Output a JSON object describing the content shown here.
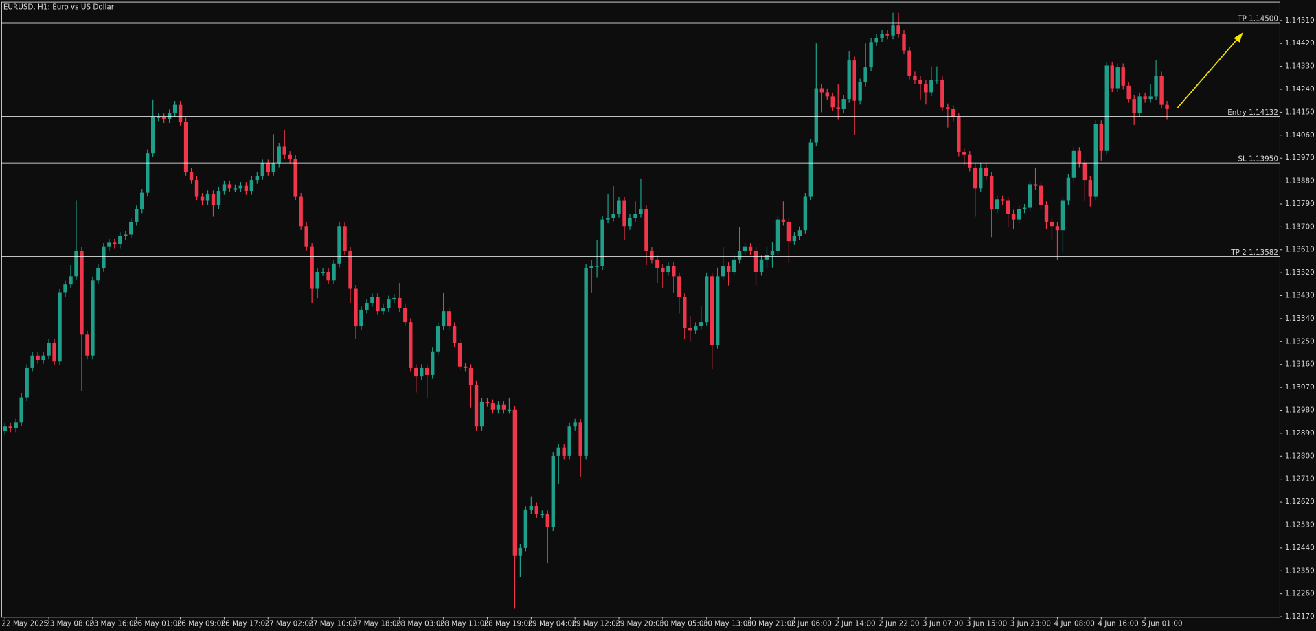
{
  "chart_data": {
    "type": "candlestick",
    "title": "EURUSD, H1:  Euro vs US Dollar",
    "up_color": "#1f9e8a",
    "down_color": "#f0364a",
    "level_color": "#ffffff",
    "open": [
      1.129,
      1.12916,
      1.12909,
      1.12932,
      1.13031,
      1.13146,
      1.13195,
      1.13178,
      1.13195,
      1.13244,
      1.13172,
      1.13441,
      1.13474,
      1.13506,
      1.13605,
      1.13277,
      1.13195,
      1.1349,
      1.13539,
      1.13621,
      1.13638,
      1.13631,
      1.13664,
      1.1367,
      1.1372,
      1.13769,
      1.13834,
      1.13989,
      1.1413,
      1.1413,
      1.14123,
      1.14146,
      1.14179,
      1.14113,
      1.13916,
      1.13884,
      1.13818,
      1.13802,
      1.13828,
      1.13785,
      1.13841,
      1.13867,
      1.13851,
      1.13851,
      1.13861,
      1.13841,
      1.13884,
      1.139,
      1.13949,
      1.13916,
      1.13949,
      1.14015,
      1.13982,
      1.13966,
      1.13818,
      1.13703,
      1.13621,
      1.13457,
      1.13523,
      1.13523,
      1.1349,
      1.13556,
      1.13703,
      1.13605,
      1.13457,
      1.1331,
      1.13375,
      1.13401,
      1.13424,
      1.13369,
      1.13382,
      1.13415,
      1.13421,
      1.13382,
      1.13326,
      1.13146,
      1.13113,
      1.13146,
      1.13119,
      1.13211,
      1.1331,
      1.13369,
      1.1331,
      1.13244,
      1.13152,
      1.13146,
      1.1308,
      1.12916,
      1.13014,
      1.13008,
      1.12982,
      1.13001,
      1.12982,
      1.12982,
      1.12408,
      1.1244,
      1.12588,
      1.12604,
      1.12572,
      1.12572,
      1.12522,
      1.12801,
      1.12834,
      1.12801,
      1.12916,
      1.12932,
      1.12801,
      1.13539,
      1.13546,
      1.13546,
      1.13729,
      1.13736,
      1.13752,
      1.13802,
      1.13703,
      1.13736,
      1.13752,
      1.13769,
      1.13605,
      1.13572,
      1.13539,
      1.13523,
      1.13546,
      1.13506,
      1.13424,
      1.13303,
      1.13293,
      1.1331,
      1.13326,
      1.13506,
      1.13237,
      1.13506,
      1.13546,
      1.13523,
      1.13572,
      1.13605,
      1.13621,
      1.13605,
      1.13523,
      1.13572,
      1.13588,
      1.13605,
      1.13729,
      1.1372,
      1.13644,
      1.13664,
      1.13687,
      1.13818,
      1.14031,
      1.14244,
      1.14228,
      1.14212,
      1.14169,
      1.14162,
      1.14202,
      1.14353,
      1.14195,
      1.14267,
      1.14326,
      1.14425,
      1.14441,
      1.14458,
      1.14451,
      1.1449,
      1.14458,
      1.14392,
      1.14294,
      1.14277,
      1.14261,
      1.14228,
      1.14277,
      1.14277,
      1.14169,
      1.14162,
      1.1413,
      1.13992,
      1.13982,
      1.13933,
      1.13851,
      1.13933,
      1.139,
      1.13769,
      1.13808,
      1.13802,
      1.13752,
      1.13729,
      1.13769,
      1.13775,
      1.13867,
      1.13861,
      1.13785,
      1.1372,
      1.13703,
      1.13687,
      1.13802,
      1.13893,
      1.13998,
      1.13949,
      1.13884,
      1.13818,
      1.14103,
      1.13998,
      1.14333,
      1.14244,
      1.14326,
      1.14254,
      1.14202,
      1.14146,
      1.14212,
      1.14202,
      1.14212,
      1.14294,
      1.14179
    ],
    "high": [
      1.12931,
      1.12931,
      1.12947,
      1.13046,
      1.13161,
      1.1321,
      1.1321,
      1.1321,
      1.13259,
      1.13259,
      1.13456,
      1.13489,
      1.1355,
      1.13802,
      1.1362,
      1.13292,
      1.13505,
      1.13554,
      1.13636,
      1.13653,
      1.13653,
      1.13679,
      1.13685,
      1.13735,
      1.13784,
      1.13849,
      1.14004,
      1.142,
      1.14145,
      1.14145,
      1.14161,
      1.14194,
      1.14194,
      1.14128,
      1.13931,
      1.13899,
      1.13833,
      1.13843,
      1.13843,
      1.13856,
      1.13882,
      1.13882,
      1.13866,
      1.13876,
      1.13876,
      1.13899,
      1.13915,
      1.13964,
      1.13964,
      1.14064,
      1.1403,
      1.1408,
      1.13997,
      1.13981,
      1.13833,
      1.13718,
      1.13636,
      1.13538,
      1.13538,
      1.13538,
      1.13571,
      1.1372,
      1.13718,
      1.1362,
      1.13472,
      1.1339,
      1.13416,
      1.13439,
      1.13439,
      1.13397,
      1.1343,
      1.13436,
      1.1348,
      1.13397,
      1.13341,
      1.13161,
      1.13161,
      1.13161,
      1.13226,
      1.13325,
      1.1344,
      1.13384,
      1.13325,
      1.13259,
      1.13167,
      1.13161,
      1.13095,
      1.13029,
      1.13029,
      1.13023,
      1.13016,
      1.13016,
      1.1303,
      1.12997,
      1.12455,
      1.12603,
      1.1264,
      1.12619,
      1.12587,
      1.12587,
      1.12816,
      1.12849,
      1.12849,
      1.12931,
      1.12947,
      1.12947,
      1.13554,
      1.1357,
      1.1365,
      1.13744,
      1.1383,
      1.1386,
      1.13817,
      1.13817,
      1.13751,
      1.138,
      1.1389,
      1.13784,
      1.1362,
      1.13587,
      1.13554,
      1.13561,
      1.13561,
      1.13521,
      1.13439,
      1.1335,
      1.13325,
      1.1339,
      1.13521,
      1.13521,
      1.1354,
      1.1362,
      1.13561,
      1.13587,
      1.137,
      1.13636,
      1.13636,
      1.1362,
      1.13587,
      1.1362,
      1.1364,
      1.13744,
      1.138,
      1.13735,
      1.13679,
      1.13702,
      1.13833,
      1.14046,
      1.1442,
      1.14259,
      1.14243,
      1.14227,
      1.1426,
      1.14217,
      1.1439,
      1.14368,
      1.14282,
      1.1442,
      1.1444,
      1.14456,
      1.14473,
      1.14473,
      1.1454,
      1.1454,
      1.14473,
      1.14407,
      1.14309,
      1.14292,
      1.14276,
      1.1433,
      1.1433,
      1.14292,
      1.14184,
      1.14177,
      1.14145,
      1.14007,
      1.13997,
      1.13948,
      1.13948,
      1.13948,
      1.13915,
      1.13823,
      1.13823,
      1.13817,
      1.13767,
      1.13784,
      1.1379,
      1.13882,
      1.1393,
      1.13876,
      1.138,
      1.13735,
      1.13718,
      1.13817,
      1.13908,
      1.14013,
      1.14013,
      1.13964,
      1.13899,
      1.14118,
      1.14118,
      1.14348,
      1.14348,
      1.14341,
      1.14341,
      1.14269,
      1.14217,
      1.14227,
      1.14227,
      1.1426,
      1.14353,
      1.14309,
      1.14194
    ],
    "low": [
      1.12885,
      1.12894,
      1.12894,
      1.12917,
      1.13016,
      1.13131,
      1.13163,
      1.13163,
      1.1318,
      1.13157,
      1.13157,
      1.13426,
      1.13459,
      1.13491,
      1.13054,
      1.1318,
      1.1318,
      1.13475,
      1.13524,
      1.13606,
      1.13616,
      1.13616,
      1.13649,
      1.13655,
      1.13705,
      1.13754,
      1.13819,
      1.13974,
      1.14115,
      1.14108,
      1.14108,
      1.14131,
      1.14098,
      1.13901,
      1.13869,
      1.13803,
      1.13787,
      1.13787,
      1.1374,
      1.1377,
      1.13826,
      1.13836,
      1.13836,
      1.13836,
      1.13826,
      1.13826,
      1.13869,
      1.13885,
      1.13901,
      1.13901,
      1.13934,
      1.13967,
      1.13951,
      1.13803,
      1.13688,
      1.13606,
      1.134,
      1.1342,
      1.13508,
      1.13475,
      1.13475,
      1.13541,
      1.1359,
      1.134,
      1.1326,
      1.13295,
      1.1336,
      1.13386,
      1.13354,
      1.13354,
      1.13367,
      1.134,
      1.13367,
      1.13311,
      1.13131,
      1.1305,
      1.13098,
      1.1303,
      1.13104,
      1.13196,
      1.13295,
      1.13295,
      1.13229,
      1.13137,
      1.13131,
      1.1299,
      1.12901,
      1.12901,
      1.12993,
      1.12967,
      1.12967,
      1.12967,
      1.12967,
      1.12201,
      1.12325,
      1.12425,
      1.12573,
      1.12557,
      1.12557,
      1.1238,
      1.12507,
      1.1269,
      1.12786,
      1.12786,
      1.12901,
      1.1272,
      1.12786,
      1.1344,
      1.135,
      1.13531,
      1.13714,
      1.13721,
      1.13737,
      1.1365,
      1.13688,
      1.13721,
      1.13737,
      1.1355,
      1.13557,
      1.1348,
      1.1346,
      1.13508,
      1.1344,
      1.1336,
      1.1326,
      1.1325,
      1.13278,
      1.13295,
      1.13311,
      1.1314,
      1.13222,
      1.13491,
      1.1347,
      1.13508,
      1.13557,
      1.1359,
      1.1359,
      1.1347,
      1.13508,
      1.1354,
      1.1354,
      1.1359,
      1.13705,
      1.1356,
      1.13629,
      1.13649,
      1.13672,
      1.13803,
      1.14016,
      1.1415,
      1.14197,
      1.14154,
      1.1412,
      1.14147,
      1.14187,
      1.1406,
      1.1418,
      1.14252,
      1.14311,
      1.1441,
      1.14426,
      1.14436,
      1.14436,
      1.14443,
      1.14377,
      1.14279,
      1.14262,
      1.142,
      1.1418,
      1.14213,
      1.14262,
      1.14154,
      1.1409,
      1.14115,
      1.13977,
      1.1394,
      1.13918,
      1.1374,
      1.13836,
      1.13885,
      1.1366,
      1.13754,
      1.13787,
      1.137,
      1.1369,
      1.13714,
      1.13754,
      1.1376,
      1.13846,
      1.1377,
      1.1369,
      1.1365,
      1.1357,
      1.136,
      1.13787,
      1.13878,
      1.13934,
      1.138,
      1.1378,
      1.13803,
      1.1396,
      1.13983,
      1.14229,
      1.14229,
      1.14239,
      1.14187,
      1.141,
      1.14131,
      1.14187,
      1.14187,
      1.14197,
      1.14164,
      1.1412
    ],
    "close": [
      1.12916,
      1.12909,
      1.12932,
      1.13031,
      1.13146,
      1.13195,
      1.13178,
      1.13195,
      1.13244,
      1.13172,
      1.13441,
      1.13474,
      1.13506,
      1.13605,
      1.13277,
      1.13195,
      1.1349,
      1.13539,
      1.13621,
      1.13638,
      1.13631,
      1.13664,
      1.1367,
      1.1372,
      1.13769,
      1.13834,
      1.13989,
      1.1413,
      1.1413,
      1.14123,
      1.14146,
      1.14179,
      1.14113,
      1.13916,
      1.13884,
      1.13818,
      1.13802,
      1.13828,
      1.13785,
      1.13841,
      1.13867,
      1.13851,
      1.13851,
      1.13861,
      1.13841,
      1.13884,
      1.139,
      1.13949,
      1.13916,
      1.13949,
      1.14015,
      1.13982,
      1.13966,
      1.13818,
      1.13703,
      1.13621,
      1.13457,
      1.13523,
      1.13523,
      1.1349,
      1.13556,
      1.13703,
      1.13605,
      1.13457,
      1.1331,
      1.13375,
      1.13401,
      1.13424,
      1.13369,
      1.13382,
      1.13415,
      1.13421,
      1.13382,
      1.13326,
      1.13146,
      1.13113,
      1.13146,
      1.13119,
      1.13211,
      1.1331,
      1.13369,
      1.1331,
      1.13244,
      1.13152,
      1.13146,
      1.1308,
      1.12916,
      1.13014,
      1.13008,
      1.12982,
      1.13001,
      1.12982,
      1.12982,
      1.12408,
      1.1244,
      1.12588,
      1.12604,
      1.12572,
      1.12572,
      1.12522,
      1.12801,
      1.12834,
      1.12801,
      1.12916,
      1.12932,
      1.12801,
      1.13539,
      1.13546,
      1.13546,
      1.13729,
      1.13736,
      1.13752,
      1.13802,
      1.13703,
      1.13736,
      1.13752,
      1.13769,
      1.13605,
      1.13572,
      1.13539,
      1.13523,
      1.13546,
      1.13506,
      1.13424,
      1.13303,
      1.13293,
      1.1331,
      1.13326,
      1.13506,
      1.13237,
      1.13506,
      1.13546,
      1.13523,
      1.13572,
      1.13605,
      1.13621,
      1.13605,
      1.13523,
      1.13572,
      1.13588,
      1.13605,
      1.13729,
      1.1372,
      1.13644,
      1.13664,
      1.13687,
      1.13818,
      1.14031,
      1.14244,
      1.14228,
      1.14212,
      1.14169,
      1.14162,
      1.14202,
      1.14353,
      1.14195,
      1.14267,
      1.14326,
      1.14425,
      1.14441,
      1.14458,
      1.14451,
      1.1449,
      1.14458,
      1.14392,
      1.14294,
      1.14277,
      1.14261,
      1.14228,
      1.14277,
      1.14277,
      1.14169,
      1.14162,
      1.1413,
      1.13992,
      1.13982,
      1.13933,
      1.13851,
      1.13933,
      1.139,
      1.13769,
      1.13808,
      1.13802,
      1.13752,
      1.13729,
      1.13769,
      1.13775,
      1.13867,
      1.13861,
      1.13785,
      1.1372,
      1.13703,
      1.13687,
      1.13802,
      1.13893,
      1.13998,
      1.13949,
      1.13884,
      1.13818,
      1.14103,
      1.13998,
      1.14333,
      1.14244,
      1.14326,
      1.14254,
      1.14202,
      1.14146,
      1.14212,
      1.14202,
      1.14212,
      1.14294,
      1.14179,
      1.14162
    ],
    "xlim": [
      -0.6,
      232.6
    ],
    "xticks": [
      {
        "value": 0,
        "label": "22 May 2025"
      },
      {
        "value": 8,
        "label": "23 May 08:00"
      },
      {
        "value": 16,
        "label": "23 May 16:00"
      },
      {
        "value": 24,
        "label": "26 May 01:00"
      },
      {
        "value": 32,
        "label": "26 May 09:00"
      },
      {
        "value": 40,
        "label": "26 May 17:00"
      },
      {
        "value": 48,
        "label": "27 May 02:00"
      },
      {
        "value": 56,
        "label": "27 May 10:00"
      },
      {
        "value": 64,
        "label": "27 May 18:00"
      },
      {
        "value": 72,
        "label": "28 May 03:00"
      },
      {
        "value": 80,
        "label": "28 May 11:00"
      },
      {
        "value": 88,
        "label": "28 May 19:00"
      },
      {
        "value": 96,
        "label": "29 May 04:00"
      },
      {
        "value": 104,
        "label": "29 May 12:00"
      },
      {
        "value": 112,
        "label": "29 May 20:00"
      },
      {
        "value": 120,
        "label": "30 May 05:00"
      },
      {
        "value": 128,
        "label": "30 May 13:00"
      },
      {
        "value": 136,
        "label": "30 May 21:00"
      },
      {
        "value": 144,
        "label": "2 Jun 06:00"
      },
      {
        "value": 152,
        "label": "2 Jun 14:00"
      },
      {
        "value": 160,
        "label": "2 Jun 22:00"
      },
      {
        "value": 168,
        "label": "3 Jun 07:00"
      },
      {
        "value": 176,
        "label": "3 Jun 15:00"
      },
      {
        "value": 184,
        "label": "3 Jun 23:00"
      },
      {
        "value": 192,
        "label": "4 Jun 08:00"
      },
      {
        "value": 200,
        "label": "4 Jun 16:00"
      },
      {
        "value": 208,
        "label": "5 Jun 01:00"
      }
    ],
    "ylim": [
      1.12168,
      1.14582
    ],
    "yticks": [
      {
        "value": 1.1451,
        "label": "1.14510"
      },
      {
        "value": 1.1442,
        "label": "1.14420"
      },
      {
        "value": 1.1433,
        "label": "1.14330"
      },
      {
        "value": 1.1424,
        "label": "1.14240"
      },
      {
        "value": 1.1415,
        "label": "1.14150"
      },
      {
        "value": 1.1406,
        "label": "1.14060"
      },
      {
        "value": 1.1397,
        "label": "1.13970"
      },
      {
        "value": 1.1388,
        "label": "1.13880"
      },
      {
        "value": 1.1379,
        "label": "1.13790"
      },
      {
        "value": 1.137,
        "label": "1.13700"
      },
      {
        "value": 1.1361,
        "label": "1.13610"
      },
      {
        "value": 1.1352,
        "label": "1.13520"
      },
      {
        "value": 1.1343,
        "label": "1.13430"
      },
      {
        "value": 1.1334,
        "label": "1.13340"
      },
      {
        "value": 1.1325,
        "label": "1.13250"
      },
      {
        "value": 1.1316,
        "label": "1.13160"
      },
      {
        "value": 1.1307,
        "label": "1.13070"
      },
      {
        "value": 1.1298,
        "label": "1.12980"
      },
      {
        "value": 1.1289,
        "label": "1.12890"
      },
      {
        "value": 1.128,
        "label": "1.12800"
      },
      {
        "value": 1.1271,
        "label": "1.12710"
      },
      {
        "value": 1.1262,
        "label": "1.12620"
      },
      {
        "value": 1.1253,
        "label": "1.12530"
      },
      {
        "value": 1.1244,
        "label": "1.12440"
      },
      {
        "value": 1.1235,
        "label": "1.12350"
      },
      {
        "value": 1.1226,
        "label": "1.12260"
      },
      {
        "value": 1.1217,
        "label": "1.12170"
      }
    ],
    "levels": [
      {
        "value": 1.145,
        "label": "TP 1.14500"
      },
      {
        "value": 1.14132,
        "label": "Entry 1.14132"
      },
      {
        "value": 1.1395,
        "label": "SL 1.13950"
      },
      {
        "value": 1.13582,
        "label": "TP 2 1.13582"
      }
    ]
  }
}
